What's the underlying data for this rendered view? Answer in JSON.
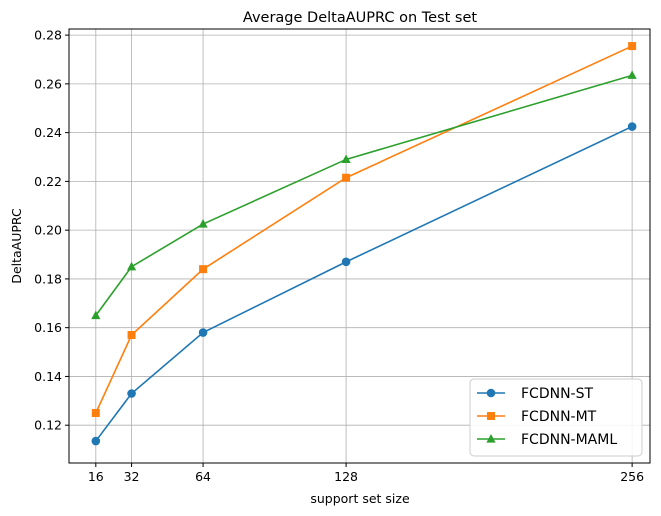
{
  "chart_data": {
    "type": "line",
    "title": "Average DeltaAUPRC on Test set",
    "xlabel": "support set size",
    "ylabel": "DeltaAUPRC",
    "x": [
      16,
      32,
      64,
      128,
      256
    ],
    "x_ticks": [
      "16",
      "32",
      "64",
      "128",
      "256"
    ],
    "y_ticks": [
      "0.12",
      "0.14",
      "0.16",
      "0.18",
      "0.20",
      "0.22",
      "0.24",
      "0.26",
      "0.28"
    ],
    "xlim": [
      4,
      264
    ],
    "ylim": [
      0.1045,
      0.2825
    ],
    "grid": true,
    "legend_position": "lower-right",
    "series": [
      {
        "name": "FCDNN-ST",
        "color": "#1f77b4",
        "marker": "circle",
        "values": [
          0.1135,
          0.133,
          0.158,
          0.187,
          0.2425
        ]
      },
      {
        "name": "FCDNN-MT",
        "color": "#ff7f0e",
        "marker": "square",
        "values": [
          0.125,
          0.157,
          0.184,
          0.2215,
          0.2755
        ]
      },
      {
        "name": "FCDNN-MAML",
        "color": "#2ca02c",
        "marker": "triangle",
        "values": [
          0.165,
          0.185,
          0.2025,
          0.229,
          0.2635
        ]
      }
    ]
  }
}
